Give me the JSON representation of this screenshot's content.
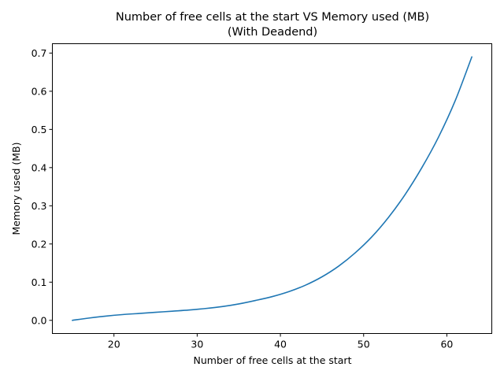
{
  "chart_data": {
    "type": "line",
    "title": "Number of free cells at the start VS Memory used (MB)",
    "subtitle": "(With Deadend)",
    "xlabel": "Number of free cells at the start",
    "ylabel": "Memory used (MB)",
    "xlim": [
      12.6,
      65.4
    ],
    "ylim": [
      -0.0345,
      0.7245
    ],
    "xticks": [
      20,
      30,
      40,
      50,
      60
    ],
    "yticks": [
      0.0,
      0.1,
      0.2,
      0.3,
      0.4,
      0.5,
      0.6,
      0.7
    ],
    "xtick_labels": [
      "20",
      "30",
      "40",
      "50",
      "60"
    ],
    "ytick_labels": [
      "0.0",
      "0.1",
      "0.2",
      "0.3",
      "0.4",
      "0.5",
      "0.6",
      "0.7"
    ],
    "grid": false,
    "series": [
      {
        "color": "#1f77b4",
        "x": [
          15,
          17,
          19,
          21,
          23,
          25,
          27,
          29,
          31,
          33,
          35,
          37,
          39,
          41,
          43,
          45,
          47,
          49,
          51,
          53,
          55,
          57,
          59,
          61,
          63
        ],
        "y": [
          0.0,
          0.006,
          0.011,
          0.015,
          0.018,
          0.021,
          0.024,
          0.027,
          0.031,
          0.036,
          0.043,
          0.052,
          0.062,
          0.075,
          0.092,
          0.114,
          0.142,
          0.177,
          0.219,
          0.27,
          0.33,
          0.4,
          0.48,
          0.575,
          0.69
        ]
      }
    ]
  }
}
